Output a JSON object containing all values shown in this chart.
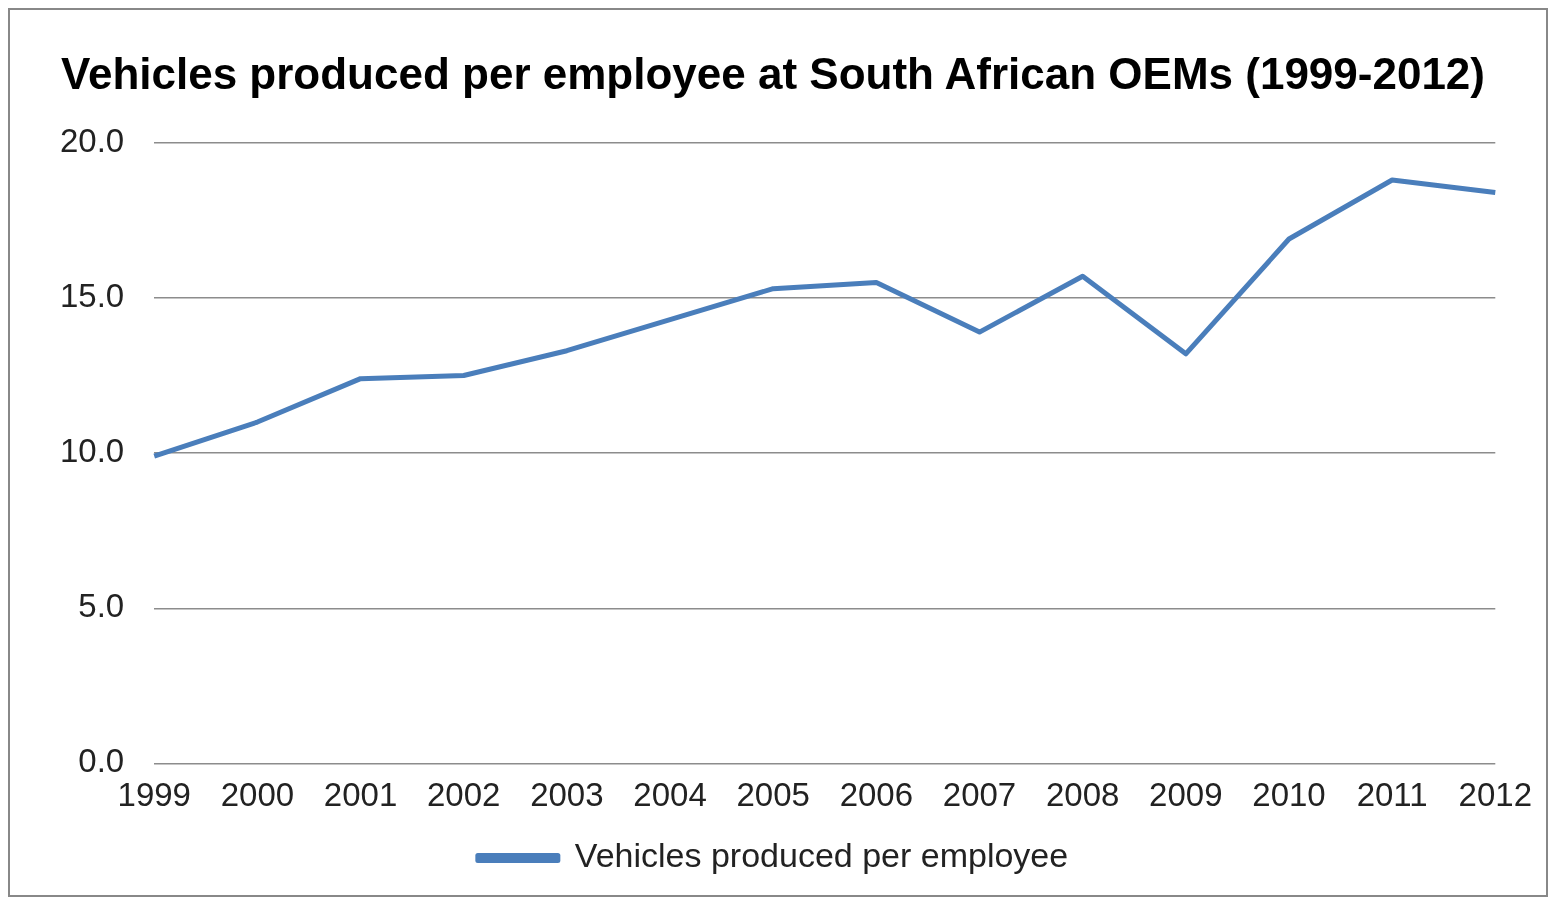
{
  "chart_data": {
    "type": "line",
    "title": "Vehicles produced per employee at South African OEMs (1999-2012)",
    "categories": [
      "1999",
      "2000",
      "2001",
      "2002",
      "2003",
      "2004",
      "2005",
      "2006",
      "2007",
      "2008",
      "2009",
      "2010",
      "2011",
      "2012"
    ],
    "series": [
      {
        "name": "Vehicles produced per employee",
        "color": "#4a7ebb",
        "values": [
          9.9,
          11.0,
          12.4,
          12.5,
          13.3,
          14.3,
          15.3,
          15.5,
          13.9,
          15.7,
          13.2,
          16.9,
          18.8,
          18.4
        ]
      }
    ],
    "ylim": [
      0,
      20
    ],
    "yticks": [
      {
        "value": 0,
        "label": "0.0"
      },
      {
        "value": 5,
        "label": "5.0"
      },
      {
        "value": 10,
        "label": "10.0"
      },
      {
        "value": 15,
        "label": "15.0"
      },
      {
        "value": 20,
        "label": "20.0"
      }
    ],
    "grid": "y",
    "legend": "bottom",
    "marker": "none",
    "line_style": "solid"
  }
}
